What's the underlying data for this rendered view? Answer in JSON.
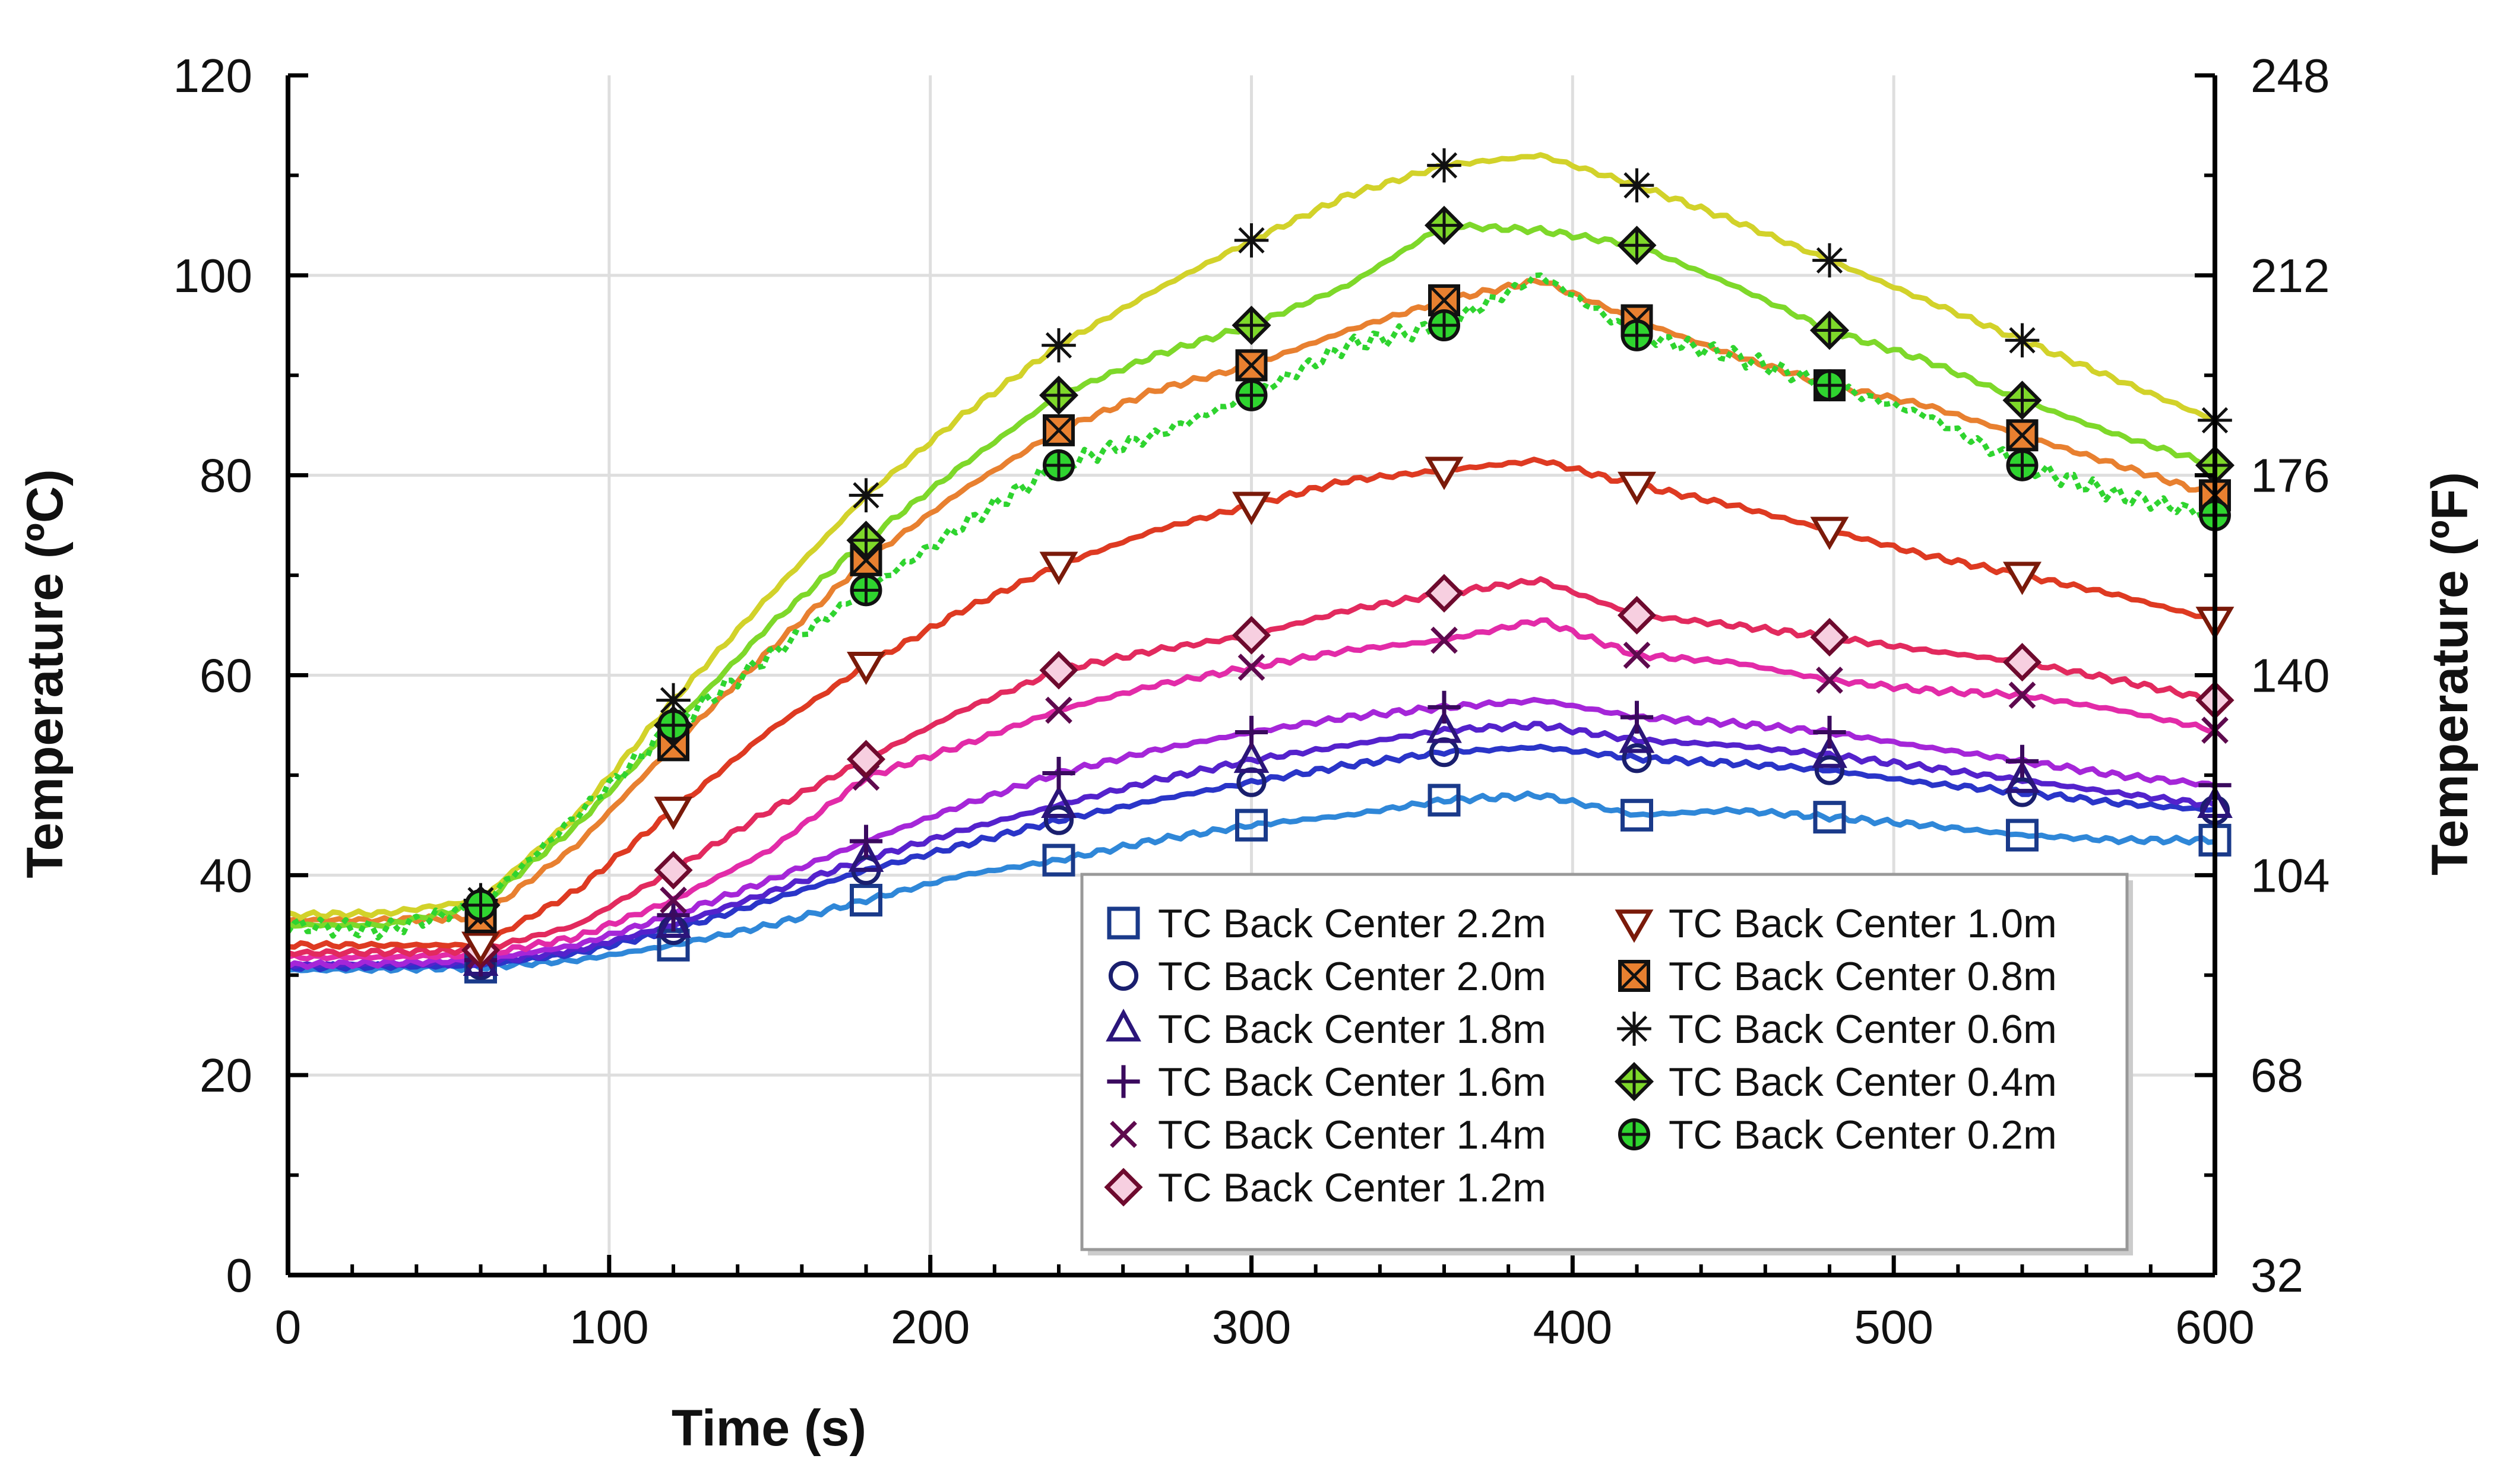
{
  "chart_data": {
    "type": "line",
    "title": "",
    "xlabel": "Time (s)",
    "ylabel": "Temperature (ºC)",
    "y2label": "Temperature (ºF)",
    "xlim": [
      0,
      600
    ],
    "ylim": [
      0,
      120
    ],
    "y2lim": [
      32,
      248
    ],
    "x_ticks": [
      "0",
      "100",
      "200",
      "300",
      "400",
      "500",
      "600"
    ],
    "y_ticks": [
      "0",
      "20",
      "40",
      "60",
      "80",
      "100",
      "120"
    ],
    "y2_ticks": [
      "32",
      "68",
      "104",
      "140",
      "176",
      "212",
      "248"
    ],
    "grid": true,
    "legend_position": "bottom-right",
    "marker_x": [
      60,
      120,
      180,
      240,
      300,
      360,
      420,
      480,
      540,
      600
    ],
    "series": [
      {
        "name": "TC Back Center 2.2m",
        "color": "#2f87d8",
        "marker": "square",
        "x": [
          0,
          30,
          60,
          90,
          120,
          150,
          180,
          210,
          240,
          270,
          300,
          330,
          360,
          390,
          420,
          450,
          480,
          510,
          540,
          570,
          600
        ],
        "y": [
          30.5,
          30.6,
          30.8,
          31.5,
          33,
          35,
          37.5,
          40,
          41.5,
          43.5,
          45,
          46,
          47.5,
          48,
          46,
          46.5,
          45.8,
          45,
          44,
          43.5,
          43.5
        ]
      },
      {
        "name": "TC Back Center 2.0m",
        "color": "#2a35c8",
        "marker": "circle",
        "x": [
          0,
          30,
          60,
          90,
          120,
          150,
          180,
          210,
          240,
          270,
          300,
          330,
          360,
          390,
          420,
          450,
          480,
          510,
          540,
          570,
          600
        ],
        "y": [
          30.8,
          30.9,
          31,
          32.2,
          34.5,
          37.5,
          40.5,
          43,
          45.5,
          47.5,
          49.3,
          51,
          52.3,
          52.8,
          51.7,
          51.2,
          50.5,
          49.2,
          48.3,
          47.2,
          46.5
        ]
      },
      {
        "name": "TC Back Center 1.8m",
        "color": "#5422cc",
        "marker": "triangle",
        "x": [
          0,
          30,
          60,
          90,
          120,
          150,
          180,
          210,
          240,
          270,
          300,
          330,
          360,
          390,
          420,
          450,
          480,
          510,
          540,
          570,
          600
        ],
        "y": [
          31,
          31.1,
          31.2,
          32.5,
          35,
          38.3,
          41.6,
          44.5,
          47,
          49.5,
          51.5,
          53,
          54.5,
          55,
          53.5,
          53,
          52,
          50.8,
          49.5,
          48.2,
          47
        ]
      },
      {
        "name": "TC Back Center 1.6m",
        "color": "#a526d8",
        "marker": "plus",
        "x": [
          0,
          30,
          60,
          90,
          120,
          150,
          180,
          210,
          240,
          270,
          300,
          330,
          360,
          390,
          420,
          450,
          480,
          510,
          540,
          570,
          600
        ],
        "y": [
          31,
          31.2,
          31.5,
          33,
          36,
          39.5,
          43.4,
          47,
          50.2,
          52.5,
          54.3,
          55.8,
          56.8,
          57.5,
          55.8,
          55.2,
          54.3,
          52.8,
          51.4,
          50,
          49
        ]
      },
      {
        "name": "TC Back Center 1.4m",
        "color": "#e22ba8",
        "marker": "x",
        "x": [
          0,
          30,
          60,
          90,
          120,
          150,
          180,
          210,
          240,
          270,
          300,
          330,
          360,
          390,
          420,
          450,
          480,
          510,
          540,
          570,
          600
        ],
        "y": [
          31.8,
          31.8,
          32,
          33.8,
          37.5,
          42.5,
          49.8,
          53,
          56.5,
          59,
          60.8,
          62.5,
          63.5,
          65.5,
          62,
          61.3,
          59.5,
          58.5,
          58,
          56.5,
          54.5
        ]
      },
      {
        "name": "TC Back Center 1.2m",
        "color": "#e22a5e",
        "marker": "diamond",
        "x": [
          0,
          30,
          60,
          90,
          120,
          150,
          180,
          210,
          240,
          270,
          300,
          330,
          360,
          390,
          420,
          450,
          480,
          510,
          540,
          570,
          600
        ],
        "y": [
          32.2,
          32.3,
          32.5,
          35,
          40.5,
          46.5,
          51.6,
          56.5,
          60.5,
          62.5,
          64,
          66.5,
          68.2,
          69.5,
          66,
          65,
          63.8,
          62.5,
          61.3,
          59.5,
          57.5
        ]
      },
      {
        "name": "TC Back Center 1.0m",
        "color": "#de3a22",
        "marker": "triangle-down",
        "x": [
          0,
          30,
          60,
          90,
          120,
          150,
          180,
          210,
          240,
          270,
          300,
          330,
          360,
          390,
          420,
          450,
          480,
          510,
          540,
          570,
          600
        ],
        "y": [
          33,
          33,
          33,
          38.5,
          46.5,
          54.5,
          61,
          66.5,
          71,
          74.5,
          77,
          79.5,
          80.5,
          81.5,
          79,
          77,
          74.5,
          72,
          70,
          68,
          65.5
        ]
      },
      {
        "name": "TC Back Center 0.8m",
        "color": "#e88030",
        "marker": "square-x",
        "x": [
          0,
          30,
          60,
          90,
          120,
          150,
          180,
          210,
          240,
          270,
          300,
          330,
          360,
          390,
          420,
          450,
          480,
          510,
          540,
          570,
          600
        ],
        "y": [
          35.5,
          35.5,
          35.8,
          43,
          53,
          62.5,
          71.5,
          78.5,
          84.5,
          88.5,
          91,
          94.5,
          97.5,
          99.5,
          95.5,
          92,
          89,
          87,
          84,
          81,
          78
        ]
      },
      {
        "name": "TC Back Center 0.6m",
        "color": "#d2d22a",
        "marker": "asterisk",
        "x": [
          0,
          30,
          60,
          90,
          120,
          150,
          180,
          210,
          240,
          270,
          300,
          330,
          360,
          390,
          420,
          450,
          480,
          510,
          540,
          570,
          600
        ],
        "y": [
          36,
          36.2,
          37.5,
          46,
          57.5,
          68,
          78,
          86,
          93,
          98.5,
          103.5,
          108,
          111,
          112,
          109,
          105.5,
          101.5,
          97.5,
          93.5,
          89.5,
          85.5
        ]
      },
      {
        "name": "TC Back Center 0.4m",
        "color": "#7ed82a",
        "marker": "diamond-plus",
        "x": [
          0,
          30,
          60,
          90,
          120,
          150,
          180,
          210,
          240,
          270,
          300,
          330,
          360,
          390,
          420,
          450,
          480,
          510,
          540,
          570,
          600
        ],
        "y": [
          35,
          35,
          37,
          45,
          55,
          65,
          73.5,
          81,
          88,
          92,
          95,
          99,
          105,
          104.5,
          103,
          99,
          94.5,
          91.5,
          87.5,
          84,
          81
        ]
      },
      {
        "name": "TC Back Center 0.2m",
        "color": "#2fd42f",
        "marker": "circle-plus",
        "x": [
          0,
          30,
          60,
          90,
          120,
          150,
          180,
          210,
          240,
          270,
          300,
          330,
          360,
          390,
          420,
          450,
          480,
          510,
          540,
          570,
          600
        ],
        "y": [
          35,
          34.5,
          37,
          46,
          55,
          62,
          68.5,
          75,
          81,
          84,
          88,
          93,
          95,
          100,
          94,
          92,
          89,
          86,
          81,
          78,
          76
        ]
      }
    ]
  }
}
